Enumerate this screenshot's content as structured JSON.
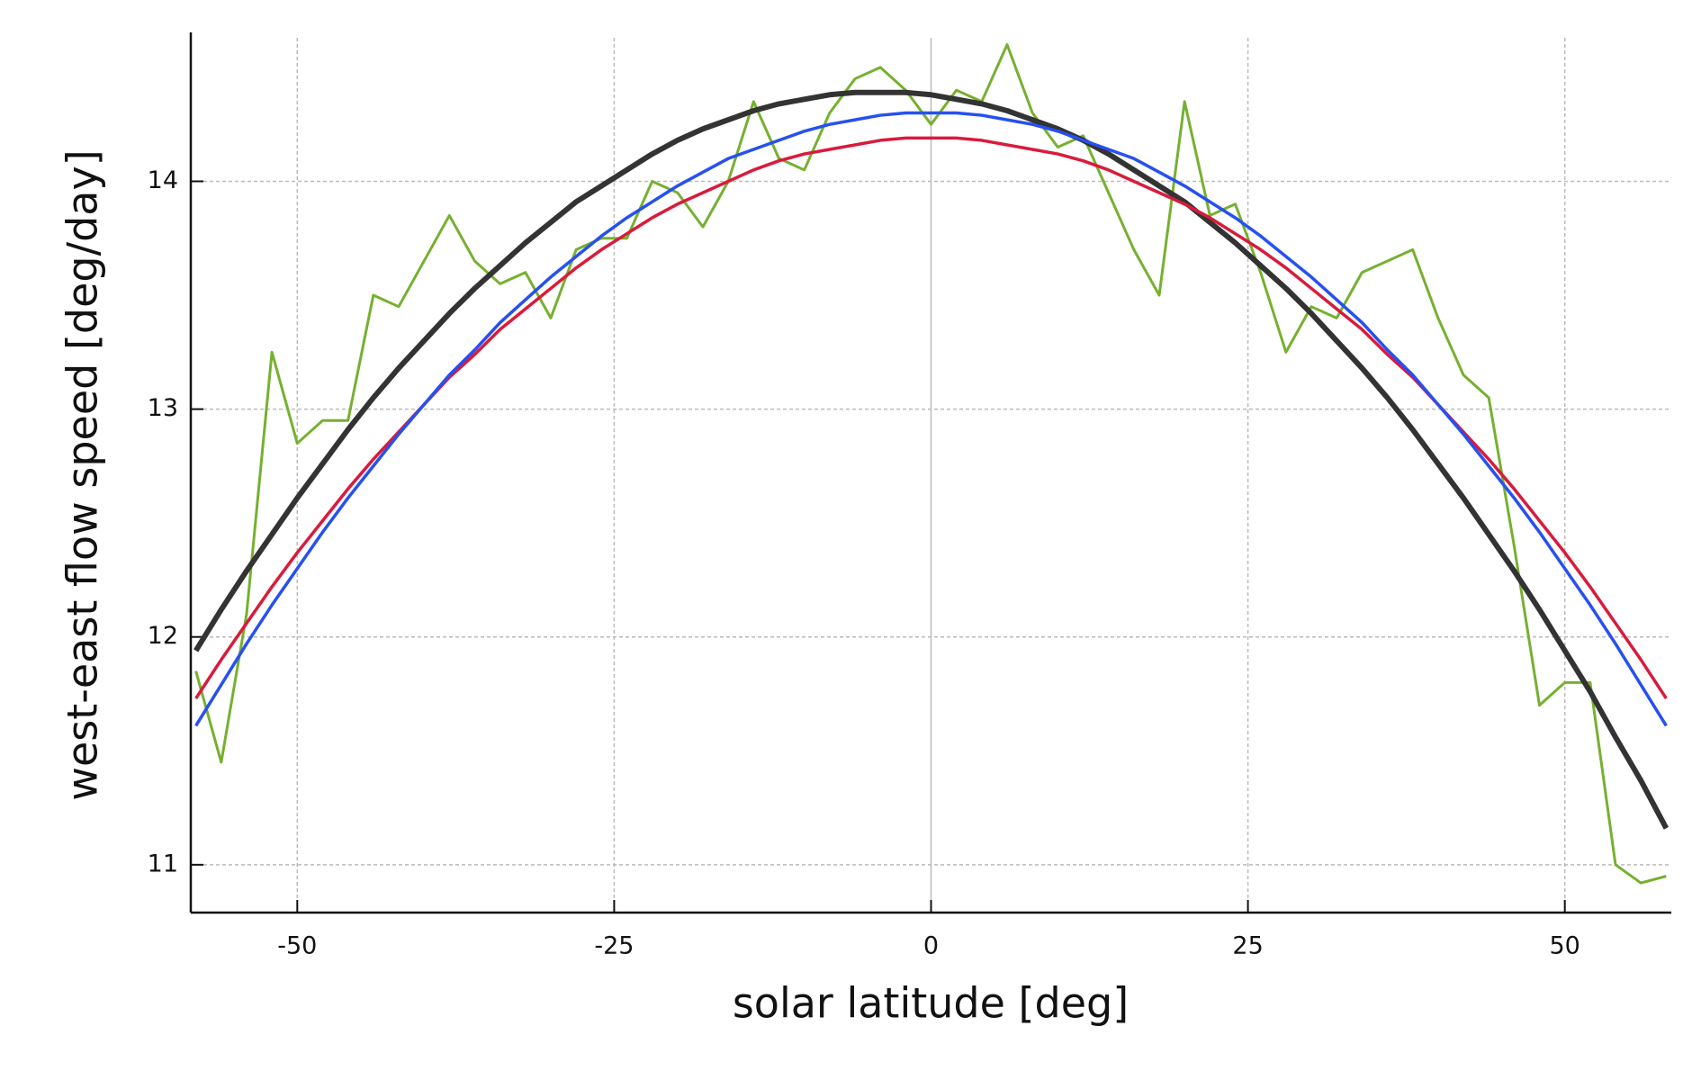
{
  "chart_data": {
    "type": "line",
    "x_label": "solar latitude [deg]",
    "y_label": "west-east flow speed [deg/day]",
    "x": [
      -58,
      -56,
      -54,
      -52,
      -50,
      -48,
      -46,
      -44,
      -42,
      -40,
      -38,
      -36,
      -34,
      -32,
      -30,
      -28,
      -26,
      -24,
      -22,
      -20,
      -18,
      -16,
      -14,
      -12,
      -10,
      -8,
      -6,
      -4,
      -2,
      0,
      2,
      4,
      6,
      8,
      10,
      12,
      14,
      16,
      18,
      20,
      22,
      24,
      26,
      28,
      30,
      32,
      34,
      36,
      38,
      40,
      42,
      44,
      46,
      48,
      50,
      52,
      54,
      56,
      58
    ],
    "series": [
      {
        "color": "#76b030",
        "width": 3,
        "values": [
          11.85,
          11.45,
          12.1,
          13.25,
          12.85,
          12.95,
          12.95,
          13.5,
          13.45,
          13.65,
          13.85,
          13.65,
          13.55,
          13.6,
          13.4,
          13.7,
          13.75,
          13.75,
          14.0,
          13.95,
          13.8,
          14.0,
          14.35,
          14.1,
          14.05,
          14.3,
          14.45,
          14.5,
          14.4,
          14.25,
          14.4,
          14.35,
          14.6,
          14.3,
          14.15,
          14.2,
          13.95,
          13.7,
          13.5,
          14.35,
          13.85,
          13.9,
          13.6,
          13.25,
          13.45,
          13.4,
          13.6,
          13.65,
          13.7,
          13.4,
          13.15,
          13.05,
          12.4,
          11.7,
          11.8,
          11.8,
          11.0,
          10.92,
          10.95
        ]
      },
      {
        "color": "#333333",
        "width": 6,
        "values": [
          11.94,
          12.12,
          12.29,
          12.45,
          12.61,
          12.76,
          12.91,
          13.05,
          13.18,
          13.3,
          13.42,
          13.53,
          13.63,
          13.73,
          13.82,
          13.91,
          13.98,
          14.05,
          14.12,
          14.18,
          14.23,
          14.27,
          14.31,
          14.34,
          14.36,
          14.38,
          14.39,
          14.39,
          14.39,
          14.38,
          14.36,
          14.34,
          14.31,
          14.27,
          14.23,
          14.18,
          14.12,
          14.05,
          13.98,
          13.91,
          13.82,
          13.73,
          13.63,
          13.53,
          13.42,
          13.3,
          13.18,
          13.05,
          12.91,
          12.76,
          12.61,
          12.45,
          12.29,
          12.12,
          11.94,
          11.76,
          11.56,
          11.37,
          11.16
        ]
      },
      {
        "color": "#d81b3c",
        "width": 3.5,
        "values": [
          11.73,
          11.9,
          12.06,
          12.22,
          12.37,
          12.51,
          12.65,
          12.78,
          12.9,
          13.02,
          13.14,
          13.24,
          13.35,
          13.44,
          13.53,
          13.62,
          13.7,
          13.77,
          13.84,
          13.9,
          13.95,
          14.0,
          14.05,
          14.09,
          14.12,
          14.14,
          14.16,
          14.18,
          14.19,
          14.19,
          14.19,
          14.18,
          14.16,
          14.14,
          14.12,
          14.09,
          14.05,
          14.0,
          13.95,
          13.9,
          13.84,
          13.77,
          13.7,
          13.62,
          13.53,
          13.44,
          13.35,
          13.24,
          13.14,
          13.02,
          12.9,
          12.78,
          12.65,
          12.51,
          12.37,
          12.22,
          12.06,
          11.9,
          11.73
        ]
      },
      {
        "color": "#2650f0",
        "width": 3.5,
        "values": [
          11.61,
          11.79,
          11.97,
          12.14,
          12.3,
          12.46,
          12.61,
          12.75,
          12.89,
          13.02,
          13.15,
          13.26,
          13.38,
          13.48,
          13.58,
          13.67,
          13.76,
          13.84,
          13.91,
          13.98,
          14.04,
          14.1,
          14.14,
          14.18,
          14.22,
          14.25,
          14.27,
          14.29,
          14.3,
          14.3,
          14.3,
          14.29,
          14.27,
          14.25,
          14.22,
          14.18,
          14.14,
          14.1,
          14.04,
          13.98,
          13.91,
          13.84,
          13.76,
          13.67,
          13.58,
          13.48,
          13.38,
          13.26,
          13.15,
          13.02,
          12.89,
          12.75,
          12.61,
          12.46,
          12.3,
          12.14,
          11.97,
          11.79,
          11.61
        ]
      }
    ],
    "xlim": [
      -58.4,
      58.4
    ],
    "xticks": [
      -50,
      -25,
      0,
      25,
      50
    ],
    "ylim": [
      10.79,
      14.63
    ],
    "yticks": [
      11,
      12,
      13,
      14
    ],
    "grid": true
  }
}
